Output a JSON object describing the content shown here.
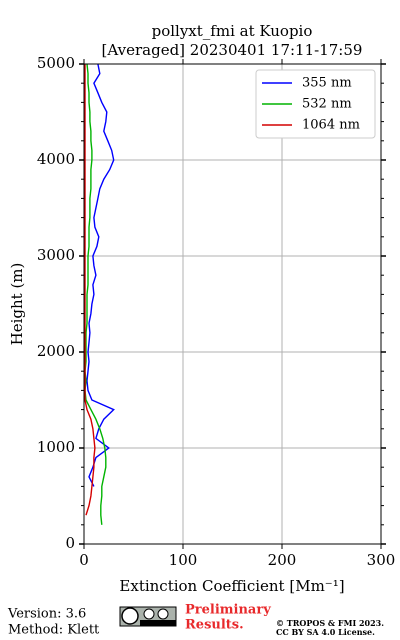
{
  "chart_data": {
    "type": "line",
    "title": "pollyxt_fmi at Kuopio",
    "subtitle": "[Averaged] 20230401 17:11-17:59",
    "x_label": "Extinction Coefficient [Mm⁻¹]",
    "y_label": "Height (m)",
    "y": [
      100,
      200,
      300,
      400,
      500,
      600,
      700,
      800,
      900,
      1000,
      1100,
      1200,
      1300,
      1400,
      1500,
      1600,
      1700,
      1800,
      1900,
      2000,
      2100,
      2200,
      2300,
      2400,
      2500,
      2600,
      2700,
      2800,
      2900,
      3000,
      3100,
      3200,
      3300,
      3400,
      3500,
      3600,
      3700,
      3800,
      3900,
      4000,
      4100,
      4200,
      4300,
      4400,
      4500,
      4600,
      4700,
      4800,
      4900,
      5000
    ],
    "series": [
      {
        "name": "355 nm",
        "color": "#0000ff",
        "values": [
          null,
          null,
          null,
          null,
          null,
          10,
          5,
          9,
          12,
          25,
          12,
          15,
          20,
          30,
          8,
          4,
          3,
          4,
          5,
          4,
          5,
          6,
          5,
          7,
          8,
          10,
          9,
          12,
          10,
          9,
          13,
          15,
          11,
          10,
          12,
          14,
          16,
          20,
          26,
          30,
          28,
          24,
          20,
          22,
          23,
          18,
          14,
          10,
          16,
          14
        ]
      },
      {
        "name": "532 nm",
        "color": "#00b400",
        "values": [
          null,
          18,
          17,
          17,
          18,
          18,
          20,
          22,
          22,
          21,
          19,
          16,
          12,
          7,
          2,
          1,
          2,
          1,
          2,
          2,
          2,
          2,
          3,
          3,
          3,
          3,
          4,
          4,
          4,
          4,
          5,
          5,
          5,
          6,
          6,
          6,
          7,
          7,
          7,
          8,
          8,
          7,
          7,
          6,
          6,
          5,
          5,
          4,
          4,
          3
        ]
      },
      {
        "name": "1064 nm",
        "color": "#d40000",
        "values": [
          null,
          null,
          2,
          5,
          7,
          8,
          9,
          10,
          10,
          11,
          10,
          9,
          7,
          3,
          1,
          1,
          1,
          1,
          1,
          1,
          1,
          1,
          1,
          1,
          1,
          1,
          1,
          1,
          1,
          1,
          1,
          1,
          1,
          1,
          1,
          1,
          1,
          1,
          1,
          1,
          1,
          1,
          1,
          1,
          1,
          1,
          1,
          1,
          1,
          1
        ]
      }
    ],
    "xlim": [
      0,
      300
    ],
    "xticks": [
      0,
      100,
      200,
      300
    ],
    "ylim": [
      0,
      5000
    ],
    "yticks": [
      0,
      1000,
      2000,
      3000,
      4000,
      5000
    ],
    "yminorticks": [
      200,
      400,
      600,
      800,
      1200,
      1400,
      1600,
      1800,
      2200,
      2400,
      2600,
      2800,
      3200,
      3400,
      3600,
      3800,
      4200,
      4400,
      4600,
      4800
    ],
    "grid": true,
    "legend": "upper right"
  },
  "footer": {
    "version": "Version: 3.6",
    "method": "Method: Klett",
    "preliminary": [
      "Preliminary",
      "Results."
    ],
    "copyright": [
      "© TROPOS & FMI 2023.",
      "CC BY SA 4.0 License."
    ]
  }
}
